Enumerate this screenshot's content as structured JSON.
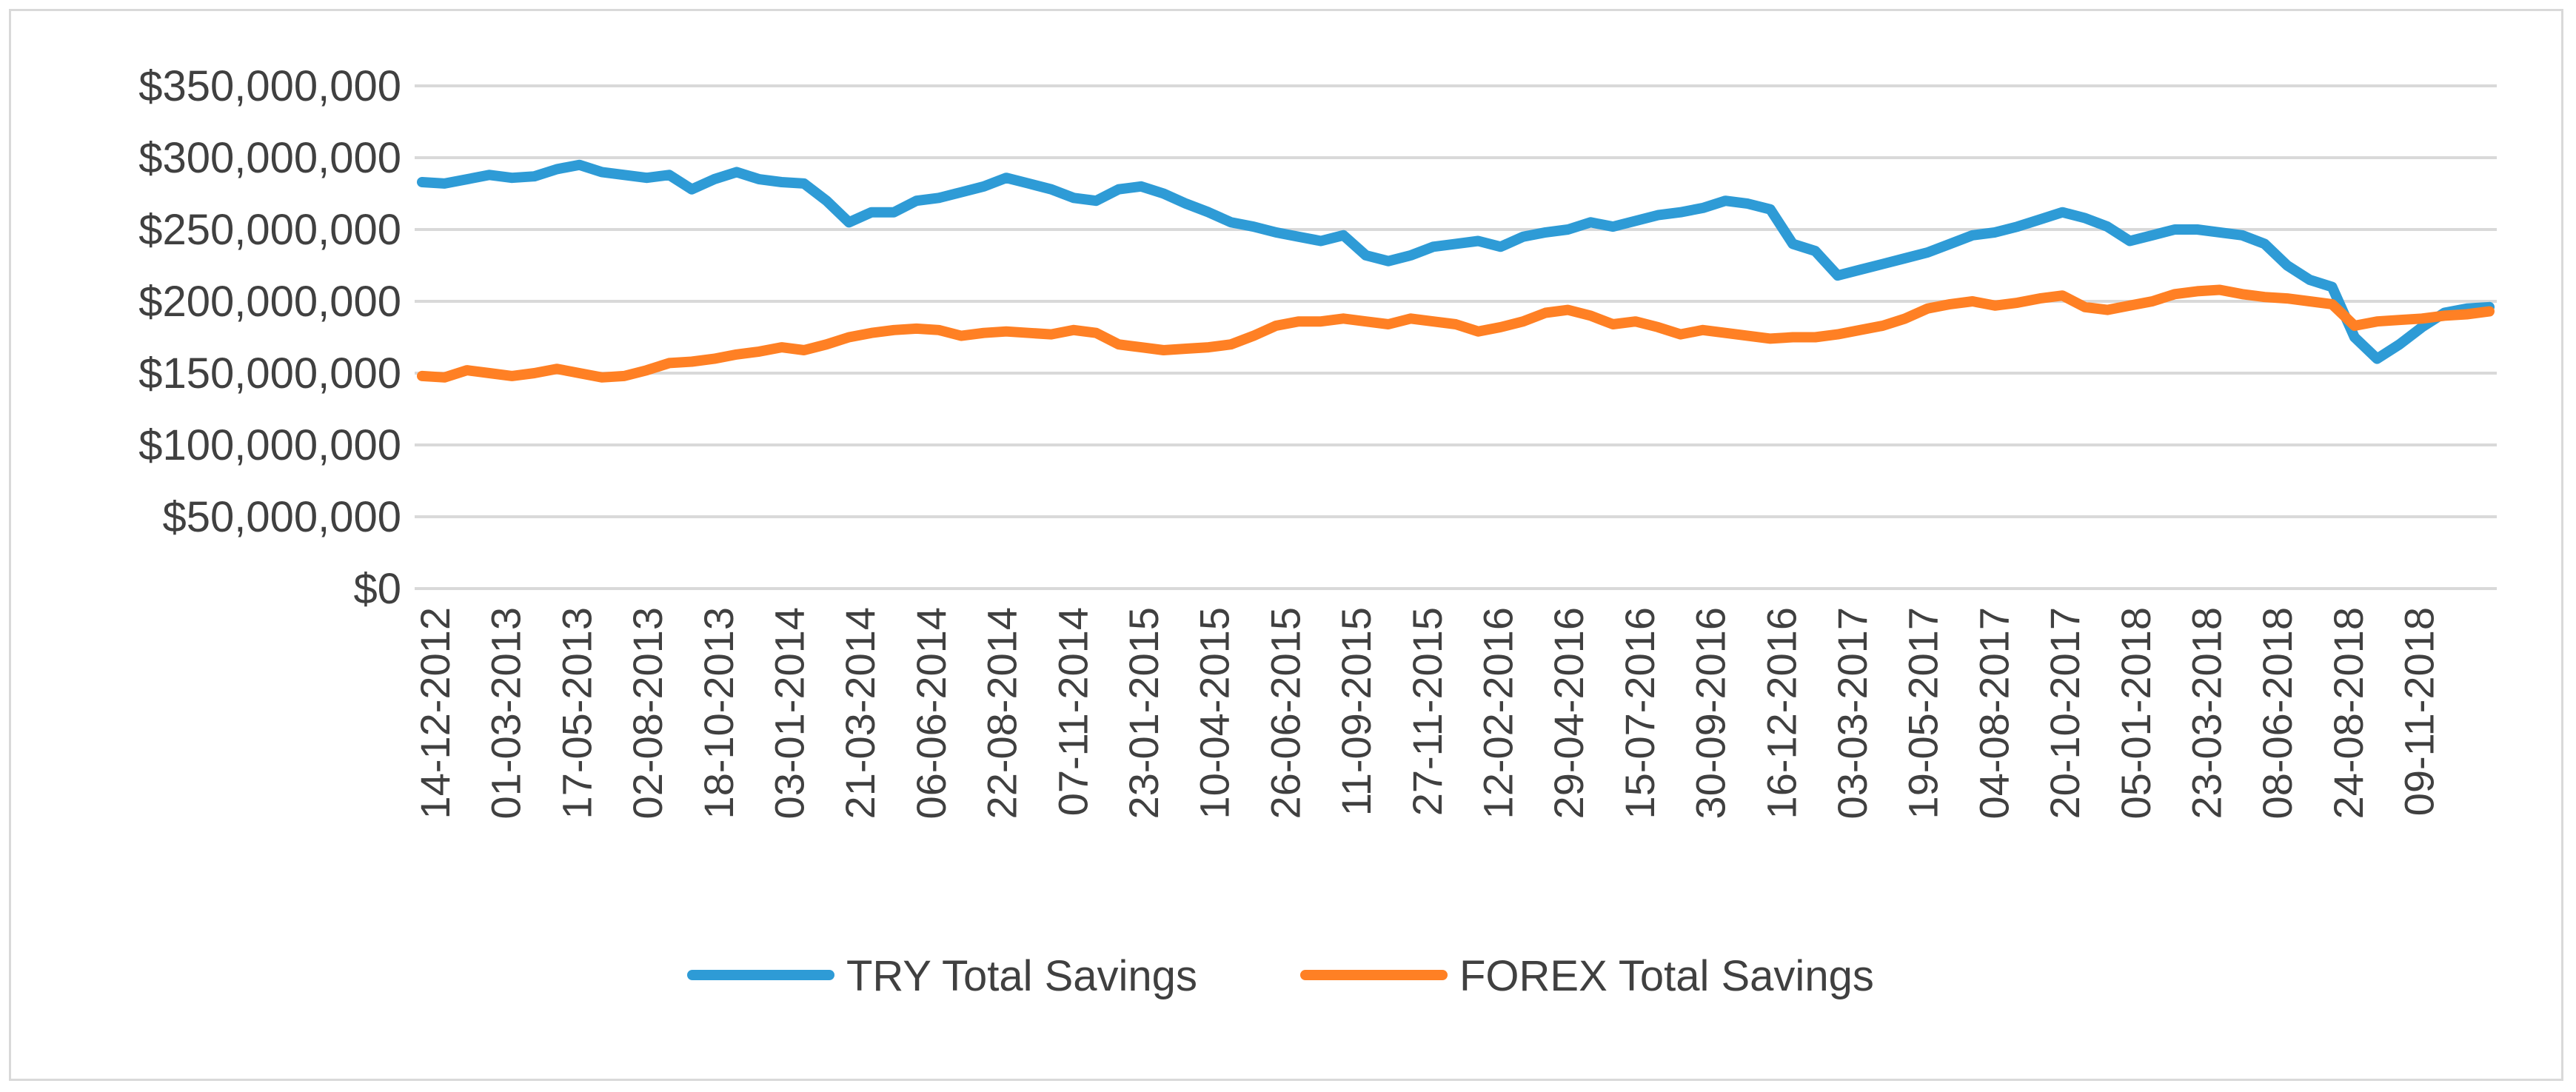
{
  "chart_data": {
    "type": "line",
    "title": "",
    "xlabel": "",
    "ylabel": "",
    "ylim": [
      0,
      350000000
    ],
    "y_tick_labels": [
      "$0",
      "$50,000,000",
      "$100,000,000",
      "$150,000,000",
      "$200,000,000",
      "$250,000,000",
      "$300,000,000",
      "$350,000,000"
    ],
    "y_tick_values": [
      0,
      50000000,
      100000000,
      150000000,
      200000000,
      250000000,
      300000000,
      350000000
    ],
    "x_tick_labels": [
      "14-12-2012",
      "01-03-2013",
      "17-05-2013",
      "02-08-2013",
      "18-10-2013",
      "03-01-2014",
      "21-03-2014",
      "06-06-2014",
      "22-08-2014",
      "07-11-2014",
      "23-01-2015",
      "10-04-2015",
      "26-06-2015",
      "11-09-2015",
      "27-11-2015",
      "12-02-2016",
      "29-04-2016",
      "15-07-2016",
      "30-09-2016",
      "16-12-2016",
      "03-03-2017",
      "19-05-2017",
      "04-08-2017",
      "20-10-2017",
      "05-01-2018",
      "23-03-2018",
      "08-06-2018",
      "24-08-2018",
      "09-11-2018"
    ],
    "x": [
      "14-12-2012",
      "07-01-2013",
      "31-01-2013",
      "24-02-2013",
      "20-03-2013",
      "13-04-2013",
      "07-05-2013",
      "31-05-2013",
      "24-06-2013",
      "18-07-2013",
      "11-08-2013",
      "04-09-2013",
      "28-09-2013",
      "22-10-2013",
      "15-11-2013",
      "09-12-2013",
      "02-01-2014",
      "26-01-2014",
      "19-02-2014",
      "15-03-2014",
      "08-04-2014",
      "02-05-2014",
      "26-05-2014",
      "19-06-2014",
      "13-07-2014",
      "06-08-2014",
      "30-08-2014",
      "23-09-2014",
      "17-10-2014",
      "10-11-2014",
      "04-12-2014",
      "28-12-2014",
      "21-01-2015",
      "14-02-2015",
      "10-03-2015",
      "03-04-2015",
      "27-04-2015",
      "21-05-2015",
      "14-06-2015",
      "08-07-2015",
      "01-08-2015",
      "25-08-2015",
      "18-09-2015",
      "12-10-2015",
      "05-11-2015",
      "29-11-2015",
      "23-12-2015",
      "16-01-2016",
      "09-02-2016",
      "04-03-2016",
      "28-03-2016",
      "21-04-2016",
      "15-05-2016",
      "08-06-2016",
      "02-07-2016",
      "26-07-2016",
      "19-08-2016",
      "12-09-2016",
      "06-10-2016",
      "30-10-2016",
      "23-11-2016",
      "17-12-2016",
      "10-01-2017",
      "03-02-2017",
      "27-02-2017",
      "23-03-2017",
      "16-04-2017",
      "10-05-2017",
      "03-06-2017",
      "27-06-2017",
      "21-07-2017",
      "14-08-2017",
      "07-09-2017",
      "01-10-2017",
      "25-10-2017",
      "18-11-2017",
      "12-12-2017",
      "05-01-2018",
      "29-01-2018",
      "22-02-2018",
      "18-03-2018",
      "11-04-2018",
      "05-05-2018",
      "29-05-2018",
      "22-06-2018",
      "16-07-2018",
      "09-08-2018",
      "02-09-2018",
      "26-09-2018",
      "20-10-2018",
      "13-11-2018",
      "07-12-2018",
      "31-12-2018"
    ],
    "series": [
      {
        "name": "TRY Total Savings",
        "color": "#2E9BD6",
        "values": [
          283000000,
          282000000,
          285000000,
          288000000,
          286000000,
          287000000,
          292000000,
          295000000,
          290000000,
          288000000,
          286000000,
          288000000,
          278000000,
          285000000,
          290000000,
          285000000,
          283000000,
          282000000,
          270000000,
          255000000,
          262000000,
          262000000,
          270000000,
          272000000,
          276000000,
          280000000,
          286000000,
          282000000,
          278000000,
          272000000,
          270000000,
          278000000,
          280000000,
          275000000,
          268000000,
          262000000,
          255000000,
          252000000,
          248000000,
          245000000,
          242000000,
          246000000,
          232000000,
          228000000,
          232000000,
          238000000,
          240000000,
          242000000,
          238000000,
          245000000,
          248000000,
          250000000,
          255000000,
          252000000,
          256000000,
          260000000,
          262000000,
          265000000,
          270000000,
          268000000,
          264000000,
          240000000,
          235000000,
          218000000,
          222000000,
          226000000,
          230000000,
          234000000,
          240000000,
          246000000,
          248000000,
          252000000,
          257000000,
          262000000,
          258000000,
          252000000,
          242000000,
          246000000,
          250000000,
          250000000,
          248000000,
          246000000,
          240000000,
          225000000,
          215000000,
          210000000,
          175000000,
          160000000,
          170000000,
          182000000,
          192000000,
          195000000,
          196000000
        ]
      },
      {
        "name": "FOREX Total Savings",
        "color": "#FF8024",
        "values": [
          148000000,
          147000000,
          152000000,
          150000000,
          148000000,
          150000000,
          153000000,
          150000000,
          147000000,
          148000000,
          152000000,
          157000000,
          158000000,
          160000000,
          163000000,
          165000000,
          168000000,
          166000000,
          170000000,
          175000000,
          178000000,
          180000000,
          181000000,
          180000000,
          176000000,
          178000000,
          179000000,
          178000000,
          177000000,
          180000000,
          178000000,
          170000000,
          168000000,
          166000000,
          167000000,
          168000000,
          170000000,
          176000000,
          183000000,
          186000000,
          186000000,
          188000000,
          186000000,
          184000000,
          188000000,
          186000000,
          184000000,
          179000000,
          182000000,
          186000000,
          192000000,
          194000000,
          190000000,
          184000000,
          186000000,
          182000000,
          177000000,
          180000000,
          178000000,
          176000000,
          174000000,
          175000000,
          175000000,
          177000000,
          180000000,
          183000000,
          188000000,
          195000000,
          198000000,
          200000000,
          197000000,
          199000000,
          202000000,
          204000000,
          196000000,
          194000000,
          197000000,
          200000000,
          205000000,
          207000000,
          208000000,
          205000000,
          203000000,
          202000000,
          200000000,
          198000000,
          183000000,
          186000000,
          187000000,
          188000000,
          190000000,
          191000000,
          193000000
        ]
      }
    ],
    "legend": {
      "position": "bottom"
    },
    "grid": true
  }
}
